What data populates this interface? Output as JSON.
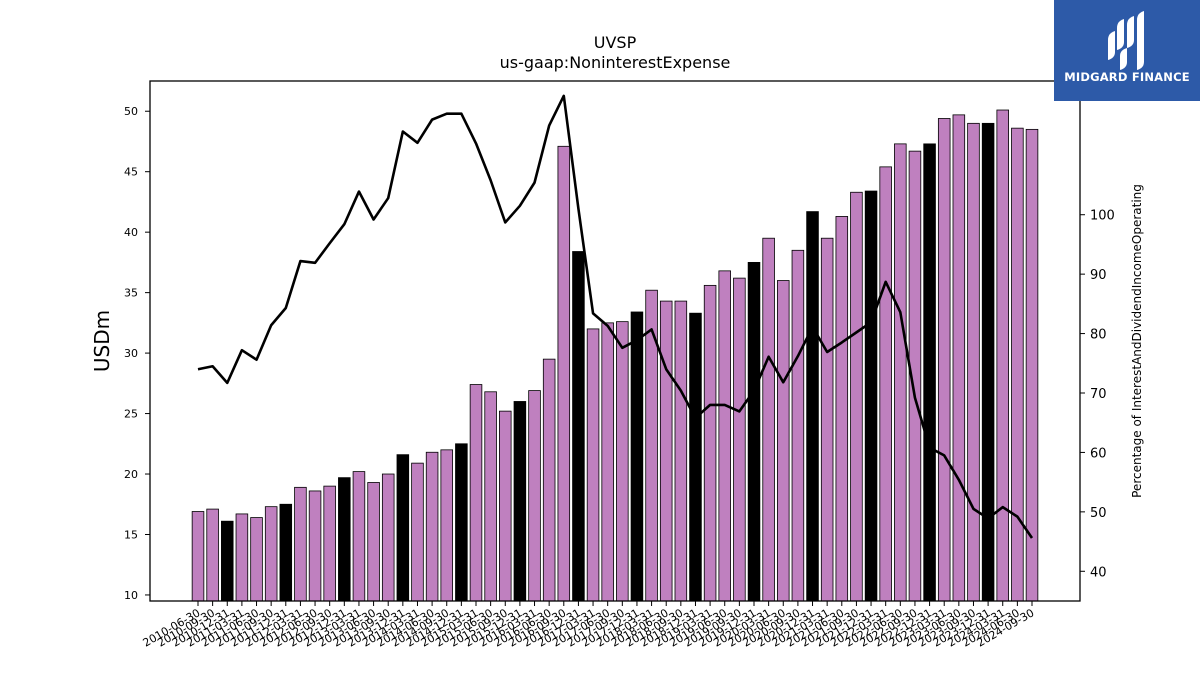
{
  "chart_data": {
    "type": "bar",
    "title": "UVSP",
    "subtitle": "us-gaap:NoninterestExpense",
    "ylabel": "USDm",
    "y2label": "Percentage of InterestAndDividendIncomeOperating",
    "ylim": [
      9.5,
      52.5
    ],
    "y2lim": [
      35,
      122.5
    ],
    "yticks": [
      10,
      15,
      20,
      25,
      30,
      35,
      40,
      45,
      50
    ],
    "y2ticks": [
      40,
      50,
      60,
      70,
      80,
      90,
      100
    ],
    "colors": {
      "bar": "#bf80bf",
      "bar_q4": "#000000",
      "line": "#000000"
    },
    "categories": [
      "2010-06-30",
      "2010-09-30",
      "2010-12-31",
      "2011-03-31",
      "2011-06-30",
      "2011-09-30",
      "2011-12-31",
      "2012-03-31",
      "2012-06-30",
      "2012-09-30",
      "2012-12-31",
      "2013-03-31",
      "2013-06-30",
      "2013-09-30",
      "2013-12-31",
      "2014-03-31",
      "2014-06-30",
      "2014-09-30",
      "2014-12-31",
      "2015-03-31",
      "2015-06-30",
      "2015-09-30",
      "2015-12-31",
      "2016-03-31",
      "2016-06-30",
      "2016-09-30",
      "2016-12-31",
      "2017-03-31",
      "2017-06-30",
      "2017-09-30",
      "2017-12-31",
      "2018-03-31",
      "2018-06-30",
      "2018-09-30",
      "2018-12-31",
      "2019-03-31",
      "2019-06-30",
      "2019-09-30",
      "2019-12-31",
      "2020-03-31",
      "2020-06-30",
      "2020-09-30",
      "2020-12-31",
      "2021-03-31",
      "2021-06-30",
      "2021-09-30",
      "2021-12-31",
      "2022-03-31",
      "2022-06-30",
      "2022-09-30",
      "2022-12-31",
      "2023-03-31",
      "2023-06-30",
      "2023-09-30",
      "2023-12-31",
      "2024-03-31",
      "2024-06-30",
      "2024-09-30"
    ],
    "series": [
      {
        "kind": "bar",
        "axis": "left",
        "values": [
          16.9,
          17.1,
          16.1,
          16.7,
          16.4,
          17.3,
          17.5,
          18.9,
          18.6,
          19.0,
          19.7,
          20.2,
          19.3,
          20.0,
          21.6,
          20.9,
          21.8,
          22.0,
          22.5,
          27.4,
          26.8,
          25.2,
          26.0,
          26.9,
          29.5,
          47.1,
          38.4,
          32.0,
          32.5,
          32.6,
          33.4,
          35.2,
          34.3,
          34.3,
          33.3,
          35.6,
          36.8,
          36.2,
          37.5,
          39.5,
          36.0,
          38.5,
          41.7,
          39.5,
          41.3,
          43.3,
          43.4,
          45.4,
          47.3,
          46.7,
          47.3,
          49.4,
          49.7,
          49.0,
          49.0,
          50.1,
          48.6,
          48.5
        ],
        "q4_flags": [
          false,
          false,
          true,
          false,
          false,
          false,
          true,
          false,
          false,
          false,
          true,
          false,
          false,
          false,
          true,
          false,
          false,
          false,
          true,
          false,
          false,
          false,
          true,
          false,
          false,
          false,
          true,
          false,
          false,
          false,
          true,
          false,
          false,
          false,
          true,
          false,
          false,
          false,
          true,
          false,
          false,
          false,
          true,
          false,
          false,
          false,
          true,
          false,
          false,
          false,
          true,
          false,
          false,
          false,
          true,
          false,
          false,
          false
        ]
      },
      {
        "kind": "line",
        "axis": "right",
        "values": [
          74.0,
          74.5,
          71.7,
          77.2,
          75.6,
          81.4,
          84.3,
          92.2,
          91.9,
          95.2,
          98.4,
          103.9,
          99.2,
          102.8,
          114.0,
          112.1,
          116.0,
          117.0,
          117.0,
          112.0,
          105.8,
          98.7,
          101.5,
          105.4,
          115.0,
          120.0,
          101.0,
          83.4,
          81.3,
          77.6,
          78.9,
          80.7,
          74.0,
          70.4,
          65.8,
          68.0,
          68.0,
          66.9,
          70.4,
          76.1,
          71.8,
          76.2,
          81.1,
          76.9,
          78.5,
          80.2,
          81.9,
          88.7,
          83.6,
          69.2,
          60.8,
          59.5,
          55.4,
          50.5,
          48.9,
          50.8,
          49.2,
          45.6
        ]
      }
    ]
  },
  "logo": {
    "text": "MIDGARD FINANCE"
  }
}
